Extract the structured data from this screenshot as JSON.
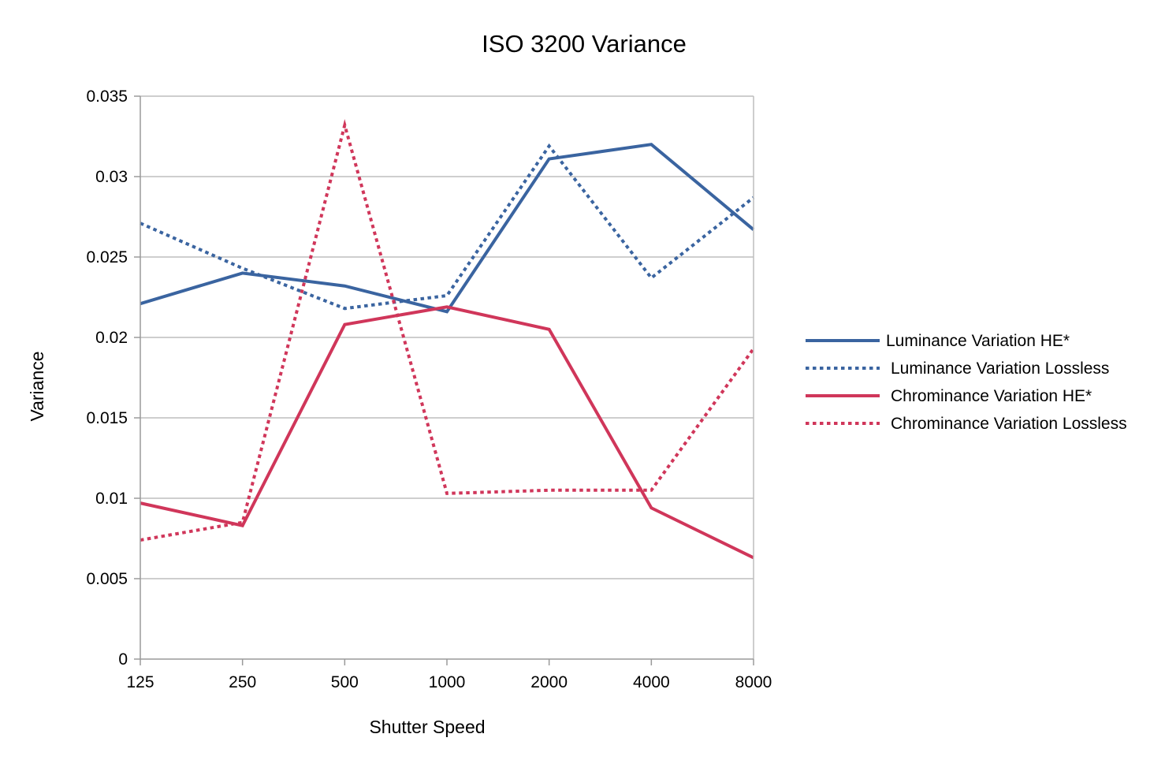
{
  "chart_data": {
    "type": "line",
    "title": "ISO 3200 Variance",
    "xlabel": "Shutter Speed",
    "ylabel": "Variance",
    "categories": [
      "125",
      "250",
      "500",
      "1000",
      "2000",
      "4000",
      "8000"
    ],
    "ylim": [
      0,
      0.035
    ],
    "yticks": [
      "0",
      "0.005",
      "0.01",
      "0.015",
      "0.02",
      "0.025",
      "0.03",
      "0.035"
    ],
    "grid": "horizontal",
    "legend_position": "right",
    "series": [
      {
        "name": "Luminance Variation HE*",
        "color": "#3a64a0",
        "style": "solid",
        "values": [
          0.0221,
          0.024,
          0.0232,
          0.0216,
          0.0311,
          0.032,
          0.0267
        ]
      },
      {
        "name": "Luminance Variation Lossless",
        "color": "#3a64a0",
        "style": "dotted",
        "values": [
          0.0271,
          0.0243,
          0.0218,
          0.0226,
          0.0319,
          0.0237,
          0.0287
        ]
      },
      {
        "name": "Chrominance Variation HE*",
        "color": "#d0365a",
        "style": "solid",
        "values": [
          0.0097,
          0.0083,
          0.0208,
          0.0219,
          0.0205,
          0.0094,
          0.0063
        ]
      },
      {
        "name": "Chrominance Variation Lossless",
        "color": "#d0365a",
        "style": "dotted",
        "values": [
          0.0074,
          0.0085,
          0.0332,
          0.0103,
          0.0105,
          0.0105,
          0.0193
        ]
      }
    ]
  }
}
